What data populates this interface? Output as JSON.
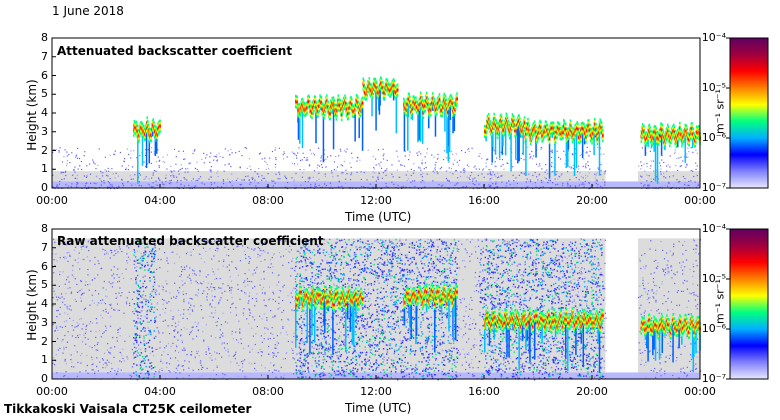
{
  "header": {
    "date": "1 June 2018"
  },
  "footer": {
    "instrument": "Tikkakoski Vaisala CT25K ceilometer"
  },
  "colorbar": {
    "ticks": [
      "10⁻⁷",
      "10⁻⁶",
      "10⁻⁵",
      "10⁻⁴"
    ],
    "unit": "m⁻¹ sr⁻¹",
    "colors": [
      "#e8e8ff",
      "#8080ff",
      "#0000ff",
      "#00b0ff",
      "#00ff80",
      "#ffff00",
      "#ff8000",
      "#ff0000",
      "#a00040",
      "#600060"
    ]
  },
  "chart_data": [
    {
      "type": "heatmap",
      "title": "Attenuated backscatter coefficient",
      "xlabel": "Time (UTC)",
      "ylabel": "Height (km)",
      "xticks": [
        "00:00",
        "04:00",
        "08:00",
        "12:00",
        "16:00",
        "20:00",
        "00:00"
      ],
      "yticks": [
        "0",
        "1",
        "2",
        "3",
        "4",
        "5",
        "6",
        "7",
        "8"
      ],
      "xlim": [
        0,
        24
      ],
      "ylim": [
        0,
        8
      ],
      "colorscale": "log",
      "clim": [
        1e-07,
        0.0001
      ],
      "features": [
        {
          "kind": "cloud-layer",
          "start": 3.0,
          "end": 4.0,
          "height": 3.1
        },
        {
          "kind": "cloud-layer",
          "start": 9.0,
          "end": 11.5,
          "height": 4.3
        },
        {
          "kind": "cloud-layer",
          "start": 11.5,
          "end": 12.8,
          "height": 5.3
        },
        {
          "kind": "cloud-layer",
          "start": 13.0,
          "end": 15.0,
          "height": 4.4
        },
        {
          "kind": "cloud-layer",
          "start": 16.0,
          "end": 17.5,
          "height": 3.3
        },
        {
          "kind": "cloud-layer",
          "start": 17.5,
          "end": 20.4,
          "height": 3.0
        },
        {
          "kind": "cloud-layer",
          "start": 21.8,
          "end": 24.0,
          "height": 2.8
        }
      ]
    },
    {
      "type": "heatmap",
      "title": "Raw attenuated backscatter coefficient",
      "xlabel": "Time (UTC)",
      "ylabel": "Height (km)",
      "xticks": [
        "00:00",
        "04:00",
        "08:00",
        "12:00",
        "16:00",
        "20:00",
        "00:00"
      ],
      "yticks": [
        "0",
        "1",
        "2",
        "3",
        "4",
        "5",
        "6",
        "7",
        "8"
      ],
      "xlim": [
        0,
        24
      ],
      "ylim": [
        0,
        8
      ],
      "colorscale": "log",
      "clim": [
        1e-07,
        0.0001
      ],
      "features": [
        {
          "kind": "noise-column",
          "start": 3.0,
          "end": 3.8
        },
        {
          "kind": "noise-column",
          "start": 9.0,
          "end": 15.0
        },
        {
          "kind": "noise-column",
          "start": 15.8,
          "end": 20.4
        },
        {
          "kind": "cloud-layer",
          "start": 9.0,
          "end": 11.5,
          "height": 4.3
        },
        {
          "kind": "cloud-layer",
          "start": 13.0,
          "end": 15.0,
          "height": 4.4
        },
        {
          "kind": "cloud-layer",
          "start": 16.0,
          "end": 20.4,
          "height": 3.1
        },
        {
          "kind": "cloud-layer",
          "start": 21.8,
          "end": 24.0,
          "height": 2.8
        }
      ]
    }
  ]
}
